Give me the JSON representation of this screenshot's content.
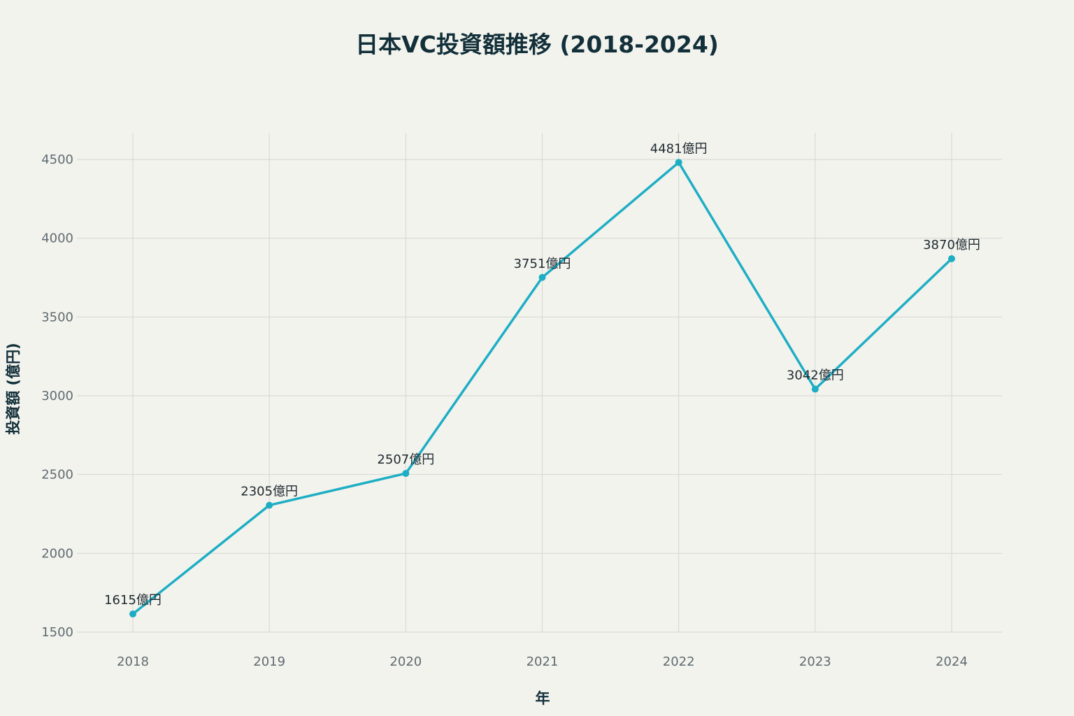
{
  "chart_data": {
    "type": "line",
    "title": "日本VC投資額推移 (2018-2024)",
    "xlabel": "年",
    "ylabel": "投資額 (億円)",
    "categories": [
      "2018",
      "2019",
      "2020",
      "2021",
      "2022",
      "2023",
      "2024"
    ],
    "series": [
      {
        "values": [
          1615,
          2305,
          2507,
          3751,
          4481,
          3042,
          3870
        ],
        "data_labels": [
          "1615億円",
          "2305億円",
          "2507億円",
          "3751億円",
          "4481億円",
          "3042億円",
          "3870億円"
        ],
        "color": "#1eaec4"
      }
    ],
    "ylim": [
      1500,
      4500
    ],
    "yticks": [
      1500,
      2000,
      2500,
      3000,
      3500,
      4000,
      4500
    ],
    "grid": true,
    "legend": "none"
  }
}
